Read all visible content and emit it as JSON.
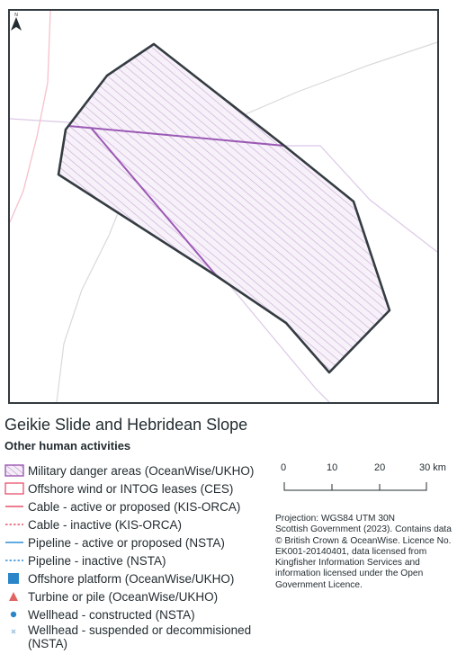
{
  "map": {
    "title": "Geikie Slide and Hebridean Slope",
    "subtitle": "Other human activities",
    "north_label": "N",
    "colors": {
      "frame": "#333b40",
      "mpa_outline": "#343c42",
      "military_outline": "#9b5ab5",
      "military_hatch": "#c8a9d6",
      "military_fill": "#f4edf7",
      "cable_active": "#e8506b",
      "cable_inactive_map": "#f6c1cc",
      "pipeline": "#2f8fd8",
      "platform": "#2a86c9",
      "turbine": "#e0645f",
      "wellhead": "#2a86c9",
      "wellhead_inactive": "#9fc4e3",
      "background_lines": "#d6d6d6",
      "faint_purple_line": "#dcc8e6"
    }
  },
  "legend": [
    {
      "symbol": "military-hatch",
      "label": "Military danger areas (OceanWise/UKHO)"
    },
    {
      "symbol": "wind-lease",
      "label": "Offshore wind or INTOG leases (CES)"
    },
    {
      "symbol": "cable-active",
      "label": "Cable - active or proposed (KIS-ORCA)"
    },
    {
      "symbol": "cable-inactive",
      "label": "Cable - inactive (KIS-ORCA)"
    },
    {
      "symbol": "pipeline-active",
      "label": "Pipeline - active or proposed (NSTA)"
    },
    {
      "symbol": "pipeline-inactive",
      "label": "Pipeline - inactive (NSTA)"
    },
    {
      "symbol": "platform",
      "label": "Offshore platform (OceanWise/UKHO)"
    },
    {
      "symbol": "turbine",
      "label": "Turbine or pile (OceanWise/UKHO)"
    },
    {
      "symbol": "wellhead-constructed",
      "label": "Wellhead - constructed (NSTA)"
    },
    {
      "symbol": "wellhead-suspended",
      "label": "Wellhead - suspended or decommisioned (NSTA)"
    }
  ],
  "scale_bar": {
    "ticks": [
      "0",
      "10",
      "20",
      "30 km"
    ]
  },
  "credits": "Projection: WGS84 UTM 30N\nScottish Government (2023). Contains data © British Crown & OceanWise. Licence No. EK001-20140401, data licensed from Kingfisher Information Services and information licensed under the Open Government Licence."
}
